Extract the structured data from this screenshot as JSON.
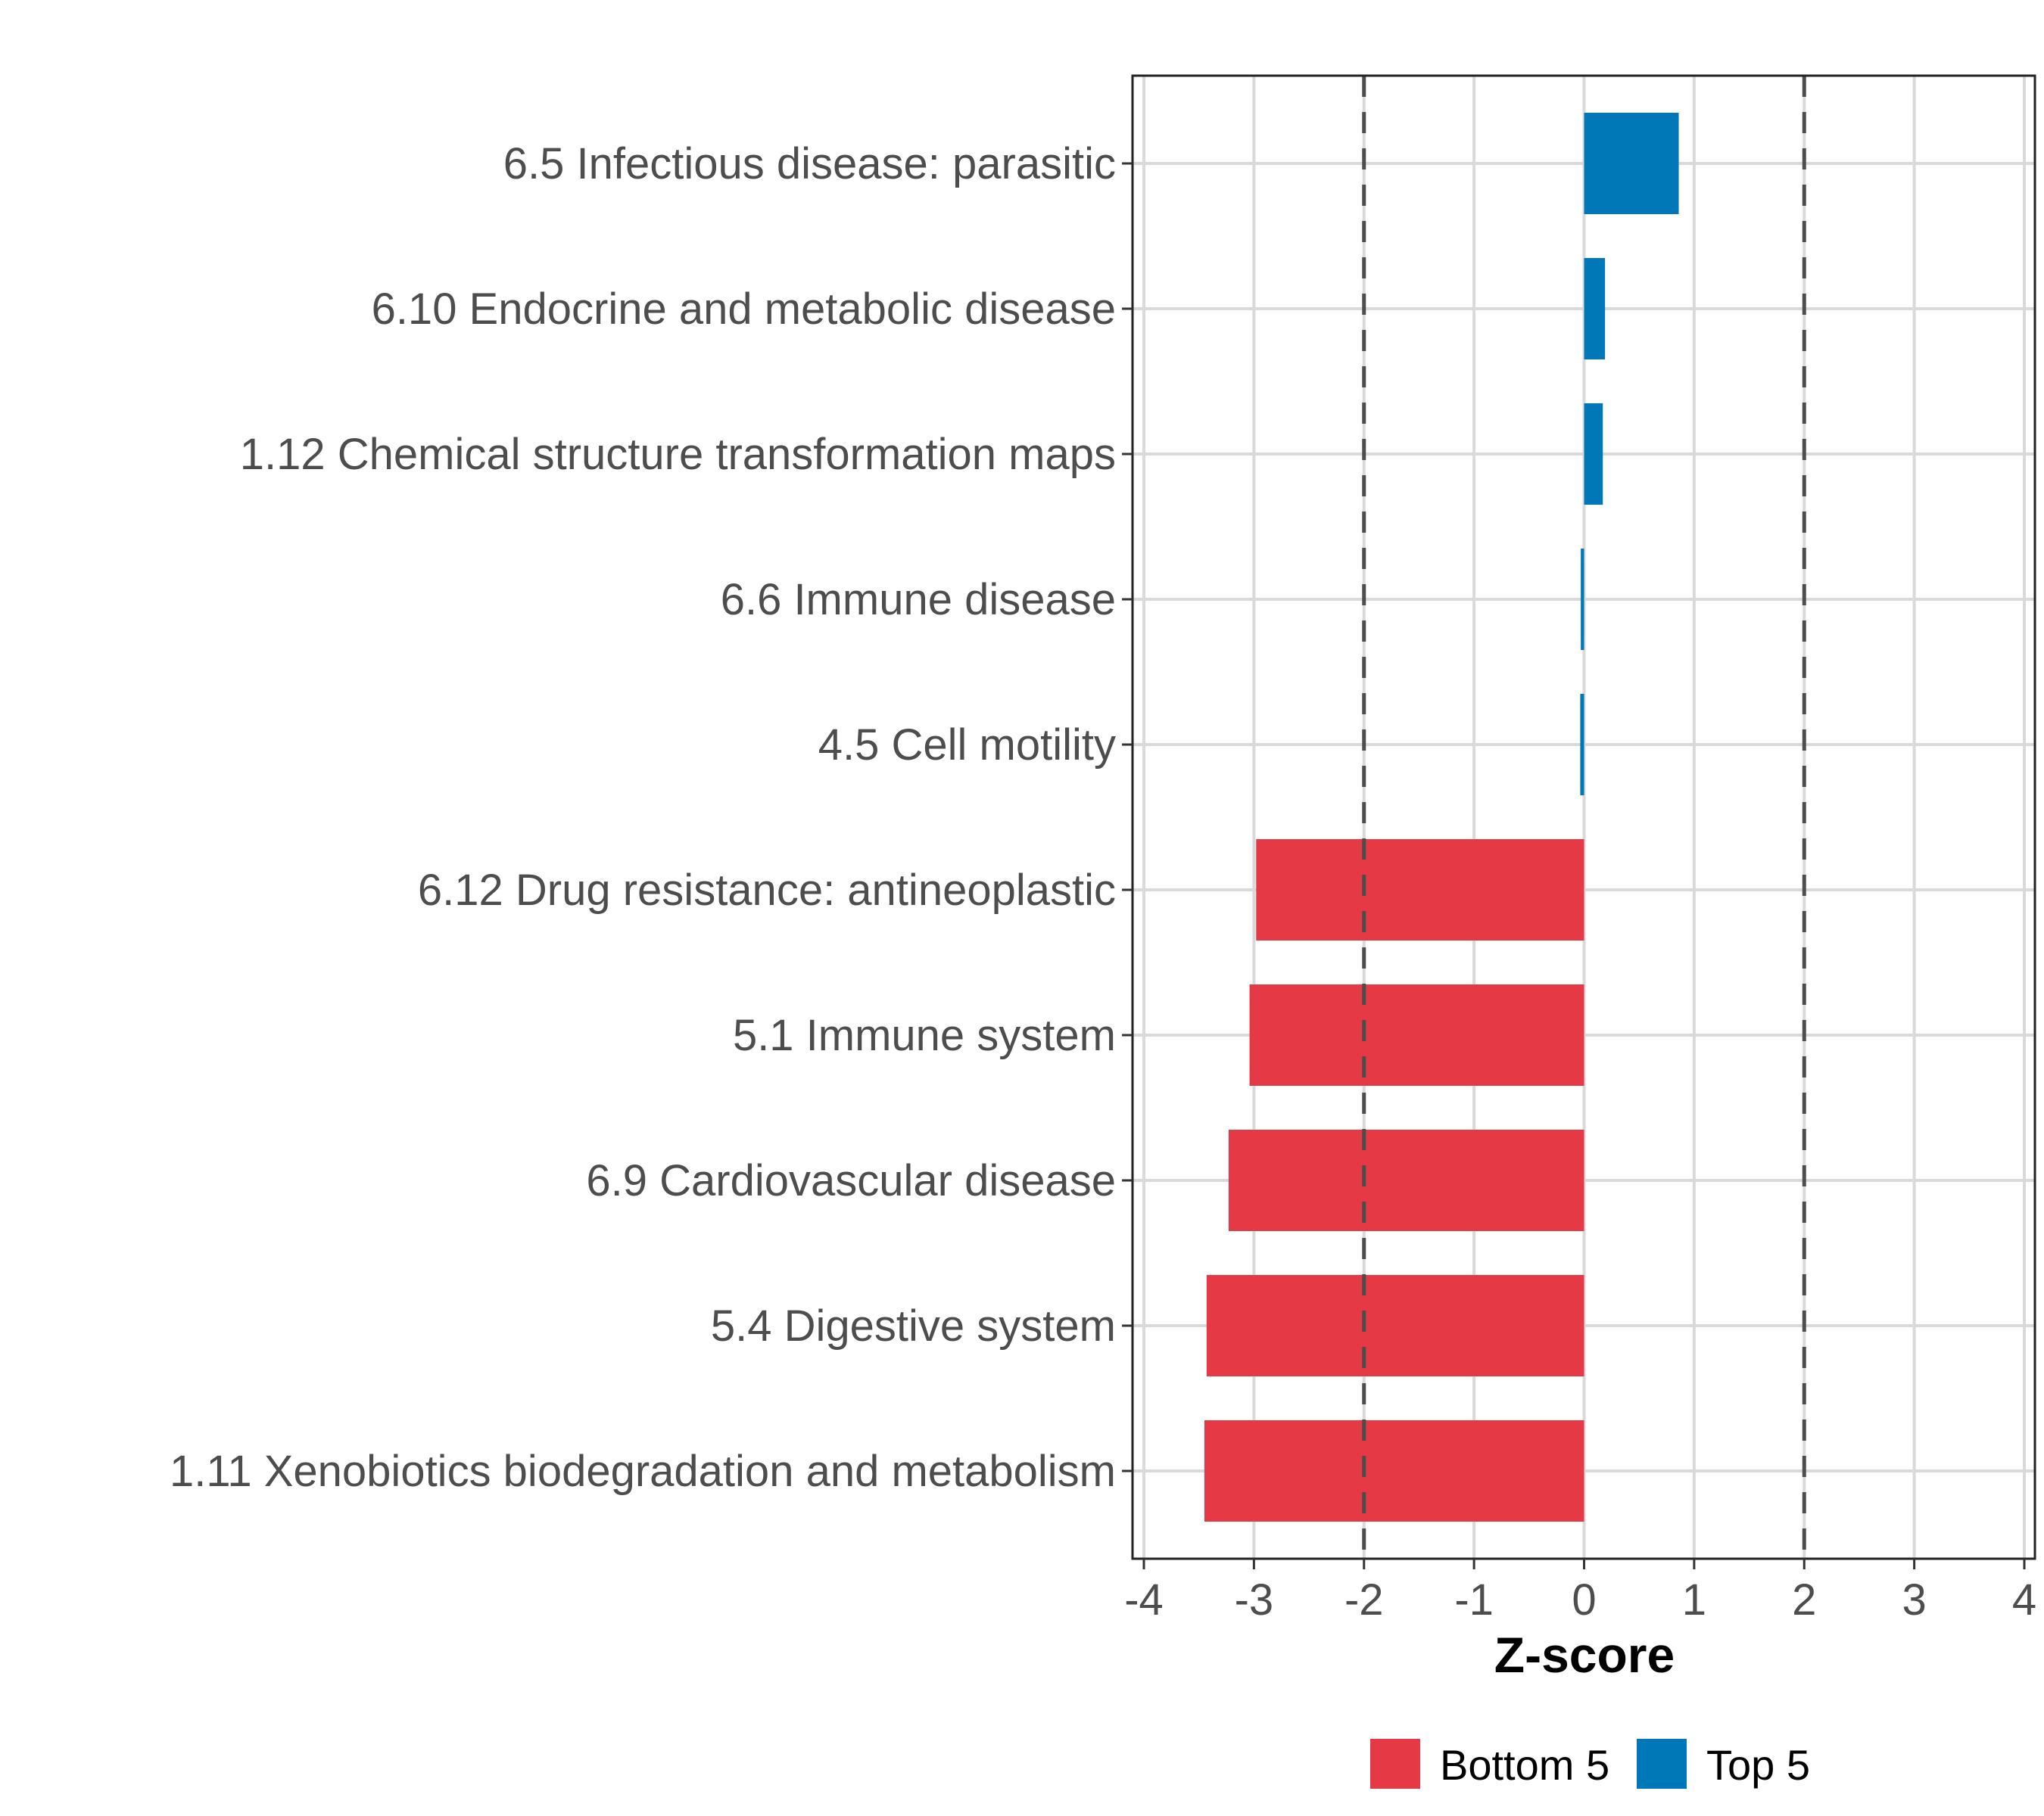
{
  "chart_data": {
    "type": "bar",
    "orientation": "horizontal",
    "title": "",
    "xlabel": "Z-score",
    "ylabel": "",
    "xlim": [
      -4,
      4
    ],
    "xticks": [
      -4,
      -3,
      -2,
      -1,
      0,
      1,
      2,
      3,
      4
    ],
    "reference_lines": [
      -2,
      2
    ],
    "grid": true,
    "legend_position": "bottom",
    "legend": [
      {
        "name": "Bottom 5",
        "color": "#e63946"
      },
      {
        "name": "Top 5",
        "color": "#0077b6"
      }
    ],
    "categories": [
      "6.5 Infectious disease: parasitic",
      "6.10 Endocrine and metabolic disease",
      "1.12 Chemical structure transformation maps",
      "6.6 Immune disease",
      "4.5 Cell motility",
      "6.12 Drug resistance: antineoplastic",
      "5.1 Immune system",
      "6.9 Cardiovascular disease",
      "5.4 Digestive system",
      "1.11 Xenobiotics biodegradation and metabolism"
    ],
    "values": [
      0.86,
      0.19,
      0.17,
      -0.03,
      -0.035,
      -2.98,
      -3.04,
      -3.23,
      -3.43,
      -3.45
    ],
    "groups": [
      "Top 5",
      "Top 5",
      "Top 5",
      "Top 5",
      "Top 5",
      "Bottom 5",
      "Bottom 5",
      "Bottom 5",
      "Bottom 5",
      "Bottom 5"
    ]
  }
}
